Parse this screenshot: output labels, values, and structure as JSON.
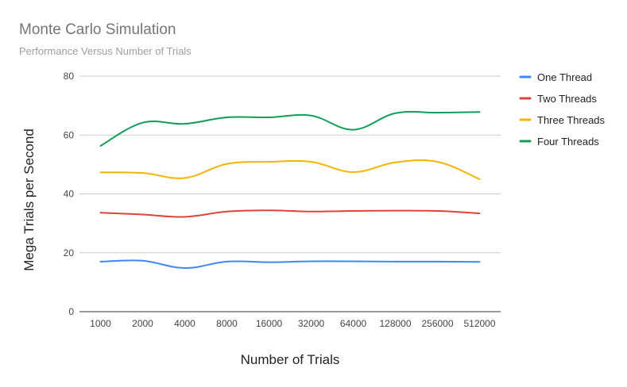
{
  "chart_data": {
    "type": "line",
    "title": "Monte Carlo Simulation",
    "subtitle": "Performance Versus Number of Trials",
    "xlabel": "Number of Trials",
    "ylabel": "Mega Trials per Second",
    "categories": [
      "1000",
      "2000",
      "4000",
      "8000",
      "16000",
      "32000",
      "64000",
      "128000",
      "256000",
      "512000"
    ],
    "ylim": [
      0,
      80
    ],
    "yticks": [
      "0",
      "20",
      "40",
      "60",
      "80"
    ],
    "grid": true,
    "legend_position": "right",
    "series": [
      {
        "name": "One Thread",
        "color": "#4285f4",
        "values": [
          17.0,
          17.3,
          14.8,
          17.0,
          16.8,
          17.1,
          17.1,
          17.0,
          17.0,
          16.9
        ]
      },
      {
        "name": "Two Threads",
        "color": "#db4437",
        "values": [
          33.6,
          33.0,
          32.2,
          34.0,
          34.4,
          34.0,
          34.2,
          34.3,
          34.2,
          33.4
        ]
      },
      {
        "name": "Three Threads",
        "color": "#f4b400",
        "values": [
          47.3,
          47.1,
          45.4,
          50.2,
          50.9,
          50.9,
          47.4,
          50.7,
          50.9,
          45.0
        ]
      },
      {
        "name": "Four Threads",
        "color": "#0f9d58",
        "values": [
          56.3,
          64.2,
          63.8,
          66.0,
          66.0,
          66.6,
          61.8,
          67.4,
          67.6,
          67.8
        ]
      }
    ]
  }
}
